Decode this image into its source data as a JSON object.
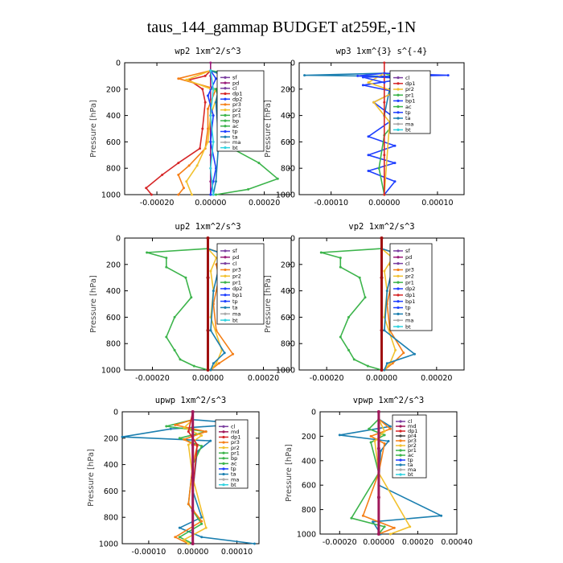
{
  "page": {
    "title": "taus_144_gammap  BUDGET at259E,-1N"
  },
  "colors": {
    "sf": "#7b3fa0",
    "pd": "#9b1d7a",
    "cl": "#7b3fa0",
    "dp1": "#d62728",
    "dp2": "#1f3fff",
    "pr1": "#3cb44b",
    "pr2": "#f2c12e",
    "pr3": "#f57f17",
    "bp": "#3cb44b",
    "bp1": "#1f3fff",
    "ac": "#3cb44b",
    "tp": "#1f3fff",
    "ta": "#1b7fb0",
    "ma": "#aaaaaa",
    "bt": "#2fd3e0",
    "md": "#a0185a",
    "thick": "#a01010"
  },
  "chart_data": [
    {
      "type": "line",
      "title": "wp2   1xm^2/s^3",
      "ylabel": "Pressure [hPa]",
      "ylim": [
        0,
        1000
      ],
      "xlim": [
        -0.00032,
        0.0003
      ],
      "xticks": [
        -0.0002,
        0.0,
        0.0002
      ],
      "xtick_labels": [
        "-0.00020",
        "0.00000",
        "0.00020"
      ],
      "yticks": [
        0,
        200,
        400,
        600,
        800,
        1000
      ],
      "legend": {
        "position": "top-right",
        "entries": [
          "sf",
          "pd",
          "cl",
          "dp1",
          "dp2",
          "pr3",
          "pr2",
          "pr1",
          "bp",
          "ac",
          "tp",
          "ta",
          "ma",
          "bt"
        ]
      },
      "series": [
        {
          "name": "pd",
          "color_key": "pd",
          "x": [
            0,
            0,
            0,
            0,
            0,
            0,
            0,
            0,
            0,
            0,
            0
          ],
          "y": [
            0,
            100,
            200,
            300,
            400,
            500,
            600,
            700,
            800,
            900,
            1000
          ]
        },
        {
          "name": "dp1",
          "color_key": "dp1",
          "x": [
            0,
            -2e-05,
            -8e-05,
            -3e-05,
            -2e-05,
            -3e-05,
            -4e-05,
            -0.00012,
            -0.00018,
            -0.00024,
            -0.00022
          ],
          "y": [
            60,
            100,
            130,
            200,
            300,
            500,
            650,
            760,
            850,
            950,
            1000
          ]
        },
        {
          "name": "pr3",
          "color_key": "pr3",
          "x": [
            0,
            -0.00012,
            2e-05,
            -1e-05,
            -1e-05,
            -2e-05,
            -8e-05,
            -0.00012,
            -0.0001,
            -0.00012
          ],
          "y": [
            60,
            120,
            200,
            350,
            500,
            650,
            780,
            850,
            950,
            1000
          ]
        },
        {
          "name": "pr2",
          "color_key": "pr2",
          "x": [
            0,
            -9e-05,
            3e-05,
            0.0,
            -1e-05,
            -5e-05,
            -9e-05,
            -7e-05
          ],
          "y": [
            60,
            130,
            220,
            400,
            600,
            780,
            900,
            1000
          ]
        },
        {
          "name": "pr1",
          "color_key": "pr1",
          "x": [
            0,
            0.00012,
            2e-05,
            4e-05,
            3e-05,
            8e-05,
            0.00018,
            0.00025,
            0.00014,
            2e-05
          ],
          "y": [
            60,
            100,
            200,
            350,
            500,
            650,
            760,
            880,
            960,
            1000
          ]
        },
        {
          "name": "dp2",
          "color_key": "dp2",
          "x": [
            0,
            2e-05,
            -1e-05,
            1e-05,
            0.0,
            2e-05,
            1e-05,
            0.0
          ],
          "y": [
            60,
            120,
            250,
            400,
            600,
            800,
            900,
            1000
          ]
        },
        {
          "name": "ta",
          "color_key": "ta",
          "x": [
            0,
            5e-05,
            3e-05,
            2e-05,
            3e-05,
            2e-05,
            1e-05
          ],
          "y": [
            60,
            100,
            180,
            300,
            600,
            900,
            1000
          ]
        },
        {
          "name": "bt",
          "color_key": "bt",
          "x": [
            0,
            1e-05,
            0.0,
            1e-05,
            0.0,
            1e-05
          ],
          "y": [
            60,
            200,
            400,
            600,
            800,
            1000
          ]
        }
      ]
    },
    {
      "type": "line",
      "title": "wp3   1xm^{3} s^{-4}",
      "ylabel": "Pressure [hPa]",
      "ylim": [
        0,
        1000
      ],
      "xlim": [
        -0.00016,
        0.00015
      ],
      "xticks": [
        -0.0001,
        0.0,
        0.0001
      ],
      "xtick_labels": [
        "-0.00010",
        "0.00000",
        "0.00010"
      ],
      "yticks": [
        0,
        200,
        400,
        600,
        800,
        1000
      ],
      "legend": {
        "position": "top-right",
        "entries": [
          "cl",
          "dp1",
          "pr2",
          "pr1",
          "bp1",
          "ac",
          "tp",
          "ta",
          "ma",
          "bt"
        ]
      },
      "series": [
        {
          "name": "ta",
          "color_key": "ta",
          "x": [
            0,
            -0.00015,
            5e-05,
            2e-05,
            1e-05,
            0.0
          ],
          "y": [
            80,
            95,
            105,
            130,
            200,
            400
          ]
        },
        {
          "name": "bp1",
          "color_key": "bp1",
          "x": [
            0,
            -5e-05,
            4e-05,
            -4e-05,
            2e-05,
            -2e-05,
            2e-05,
            -3e-05,
            2e-05,
            -3e-05,
            2e-05,
            -3e-05,
            2e-05,
            0.0
          ],
          "y": [
            80,
            100,
            120,
            170,
            220,
            300,
            420,
            560,
            630,
            700,
            760,
            820,
            900,
            1000
          ]
        },
        {
          "name": "ac",
          "color_key": "ac",
          "x": [
            0,
            5e-05,
            8e-05,
            3e-05,
            0.0,
            -1e-05,
            0.0
          ],
          "y": [
            80,
            150,
            250,
            400,
            550,
            800,
            1000
          ]
        },
        {
          "name": "pr2",
          "color_key": "pr2",
          "x": [
            0,
            -3e-05,
            2e-05,
            -2e-05,
            1e-05,
            0.0
          ],
          "y": [
            80,
            150,
            220,
            300,
            450,
            1000
          ]
        },
        {
          "name": "dp1",
          "color_key": "dp1",
          "x": [
            0,
            0.0,
            0.0,
            0.0
          ],
          "y": [
            0,
            300,
            700,
            1000
          ]
        },
        {
          "name": "tp",
          "color_key": "tp",
          "x": [
            0,
            0.00012,
            -4e-05,
            0.0
          ],
          "y": [
            80,
            95,
            110,
            150
          ]
        }
      ]
    },
    {
      "type": "line",
      "title": "up2   1xm^2/s^3",
      "ylabel": "Pressure [hPa]",
      "ylim": [
        0,
        1000
      ],
      "xlim": [
        -0.0003,
        0.0003
      ],
      "xticks": [
        -0.0002,
        0.0,
        0.0002
      ],
      "xtick_labels": [
        "-0.00020",
        "0.00000",
        "0.00020"
      ],
      "yticks": [
        0,
        200,
        400,
        600,
        800,
        1000
      ],
      "legend": {
        "position": "top-right",
        "entries": [
          "sf",
          "pd",
          "cl",
          "pr3",
          "pr2",
          "pr1",
          "dp2",
          "bp1",
          "tp",
          "ta",
          "ma",
          "bt"
        ]
      },
      "series": [
        {
          "name": "pr1",
          "color_key": "pr1",
          "x": [
            0,
            -0.00022,
            -0.00015,
            -0.00015,
            -8e-05,
            -6e-05,
            -0.00012,
            -0.00015,
            -0.00012,
            -0.0001,
            -5e-05,
            0.0
          ],
          "y": [
            80,
            110,
            150,
            220,
            300,
            450,
            600,
            750,
            850,
            920,
            970,
            1000
          ]
        },
        {
          "name": "pr3",
          "color_key": "pr3",
          "x": [
            0,
            6e-05,
            3e-05,
            4e-05,
            2e-05,
            3e-05,
            9e-05,
            4e-05,
            1e-05
          ],
          "y": [
            80,
            120,
            200,
            300,
            500,
            700,
            880,
            950,
            1000
          ]
        },
        {
          "name": "pr2",
          "color_key": "pr2",
          "x": [
            0,
            3e-05,
            1e-05,
            2e-05,
            1e-05,
            5e-05,
            3e-05,
            1e-05
          ],
          "y": [
            80,
            150,
            250,
            400,
            600,
            850,
            950,
            1000
          ]
        },
        {
          "name": "ta",
          "color_key": "ta",
          "x": [
            0,
            8e-05,
            4e-05,
            2e-05,
            1e-05,
            6e-05,
            2e-05,
            1e-05
          ],
          "y": [
            80,
            140,
            220,
            400,
            700,
            870,
            950,
            1000
          ]
        },
        {
          "name": "thick",
          "color_key": "thick",
          "x": [
            0,
            0,
            0,
            0
          ],
          "y": [
            0,
            300,
            700,
            1000
          ]
        }
      ]
    },
    {
      "type": "line",
      "title": "vp2   1xm^2/s^3",
      "ylabel": "Pressure [hPa]",
      "ylim": [
        0,
        1000
      ],
      "xlim": [
        -0.0003,
        0.0003
      ],
      "xticks": [
        -0.0002,
        0.0,
        0.0002
      ],
      "xtick_labels": [
        "-0.00020",
        "0.00000",
        "0.00020"
      ],
      "yticks": [
        0,
        200,
        400,
        600,
        800,
        1000
      ],
      "legend": {
        "position": "top-right",
        "entries": [
          "sf",
          "pd",
          "cl",
          "pr3",
          "pr2",
          "pr1",
          "dp2",
          "dp1",
          "bp1",
          "tp",
          "ta",
          "ma",
          "bt"
        ]
      },
      "series": [
        {
          "name": "pr1",
          "color_key": "pr1",
          "x": [
            0,
            -0.00022,
            -0.00015,
            -0.00015,
            -8e-05,
            -6e-05,
            -0.00012,
            -0.00015,
            -0.00012,
            -0.0001,
            -5e-05,
            0.0
          ],
          "y": [
            80,
            110,
            150,
            220,
            300,
            450,
            600,
            750,
            850,
            920,
            970,
            1000
          ]
        },
        {
          "name": "pr3",
          "color_key": "pr3",
          "x": [
            0,
            7e-05,
            3e-05,
            4e-05,
            2e-05,
            3e-05,
            8e-05,
            4e-05,
            1e-05
          ],
          "y": [
            80,
            130,
            200,
            300,
            500,
            700,
            870,
            950,
            1000
          ]
        },
        {
          "name": "pr2",
          "color_key": "pr2",
          "x": [
            0,
            4e-05,
            1e-05,
            2e-05,
            1e-05,
            5e-05,
            3e-05,
            1e-05
          ],
          "y": [
            80,
            150,
            250,
            400,
            600,
            850,
            950,
            1000
          ]
        },
        {
          "name": "ta",
          "color_key": "ta",
          "x": [
            0,
            9e-05,
            4e-05,
            2e-05,
            1e-05,
            0.00012,
            2e-05,
            1e-05
          ],
          "y": [
            80,
            140,
            220,
            400,
            700,
            880,
            950,
            1000
          ]
        },
        {
          "name": "thick",
          "color_key": "thick",
          "x": [
            0,
            0,
            0,
            0
          ],
          "y": [
            0,
            300,
            700,
            1000
          ]
        }
      ]
    },
    {
      "type": "line",
      "title": "upwp   1xm^2/s^3",
      "ylabel": "Pressure [hPa]",
      "ylim": [
        0,
        1000
      ],
      "xlim": [
        -0.00016,
        0.00015
      ],
      "xticks": [
        -0.0001,
        0.0,
        0.0001
      ],
      "xtick_labels": [
        "-0.00010",
        "0.00000",
        "0.00010"
      ],
      "yticks": [
        0,
        200,
        400,
        600,
        800,
        1000
      ],
      "legend": {
        "position": "top-right",
        "entries": [
          "cl",
          "md",
          "dp1",
          "pr3",
          "pr2",
          "pr1",
          "bp",
          "ac",
          "tp",
          "ta",
          "ma",
          "bt"
        ]
      },
      "series": [
        {
          "name": "ta",
          "color_key": "ta",
          "x": [
            0,
            0.00012,
            -5e-05,
            -0.00016,
            4e-05,
            1e-05,
            0.0,
            2e-05,
            -3e-05,
            2e-05,
            0.00014
          ],
          "y": [
            60,
            90,
            130,
            190,
            220,
            300,
            600,
            800,
            880,
            950,
            1000
          ]
        },
        {
          "name": "pr1",
          "color_key": "pr1",
          "x": [
            0,
            -6e-05,
            3e-05,
            -3e-05,
            2e-05,
            0.0,
            -1e-05,
            2e-05,
            -3e-05,
            0.0
          ],
          "y": [
            60,
            110,
            150,
            200,
            260,
            400,
            700,
            850,
            950,
            1000
          ]
        },
        {
          "name": "pr3",
          "color_key": "pr3",
          "x": [
            0,
            -4e-05,
            3e-05,
            -2e-05,
            1e-05,
            0.0,
            -1e-05,
            2e-05,
            -4e-05,
            -1e-05
          ],
          "y": [
            60,
            100,
            150,
            210,
            260,
            400,
            700,
            830,
            950,
            1000
          ]
        },
        {
          "name": "pr2",
          "color_key": "pr2",
          "x": [
            0,
            -2e-05,
            2e-05,
            -1e-05,
            0.0,
            3e-05,
            -2e-05,
            -1e-05
          ],
          "y": [
            60,
            120,
            180,
            250,
            500,
            880,
            970,
            1000
          ]
        },
        {
          "name": "dp1",
          "color_key": "dp1",
          "x": [
            0,
            -1e-05,
            1e-05,
            0.0,
            0.0
          ],
          "y": [
            0,
            150,
            250,
            600,
            1000
          ]
        },
        {
          "name": "md",
          "color_key": "md",
          "x": [
            0,
            0,
            0,
            0,
            0
          ],
          "y": [
            0,
            250,
            500,
            750,
            1000
          ]
        }
      ]
    },
    {
      "type": "line",
      "title": "vpwp   1xm^2/s^3",
      "ylabel": "Pressure [hPa]",
      "ylim": [
        0,
        1000
      ],
      "xlim": [
        -0.0003,
        0.0004
      ],
      "xticks": [
        -0.0002,
        0.0,
        0.0002,
        0.0004
      ],
      "xtick_labels": [
        "-0.00020",
        "0.00000",
        "0.00020",
        "0.00040"
      ],
      "yticks": [
        0,
        200,
        400,
        600,
        800,
        1000
      ],
      "legend": {
        "position": "top-right",
        "entries": [
          "cl",
          "md",
          "dp1",
          "pr4",
          "pr3",
          "pr2",
          "pr1",
          "ac",
          "tp",
          "ta",
          "ma",
          "bt"
        ]
      },
      "series": [
        {
          "name": "ta",
          "color_key": "ta",
          "x": [
            0,
            6e-05,
            -0.0002,
            5e-05,
            1e-05,
            0.0,
            0.00032,
            -3e-05,
            1e-05
          ],
          "y": [
            60,
            120,
            190,
            240,
            320,
            600,
            850,
            900,
            1000
          ]
        },
        {
          "name": "pr1",
          "color_key": "pr1",
          "x": [
            0,
            -5e-05,
            3e-05,
            -4e-05,
            0.0,
            -0.00014,
            3e-05,
            0.0
          ],
          "y": [
            60,
            140,
            190,
            250,
            500,
            870,
            940,
            1000
          ]
        },
        {
          "name": "pr3",
          "color_key": "pr3",
          "x": [
            0,
            6e-05,
            -4e-05,
            3e-05,
            0.0,
            -8e-05,
            8e-05,
            0.0
          ],
          "y": [
            60,
            140,
            200,
            260,
            500,
            850,
            950,
            1000
          ]
        },
        {
          "name": "pr2",
          "color_key": "pr2",
          "x": [
            0,
            3e-05,
            -2e-05,
            0.0,
            0.00016,
            6e-05
          ],
          "y": [
            60,
            160,
            240,
            500,
            940,
            1000
          ]
        },
        {
          "name": "md",
          "color_key": "md",
          "x": [
            0,
            0,
            0,
            0
          ],
          "y": [
            0,
            300,
            700,
            1000
          ]
        }
      ]
    }
  ]
}
